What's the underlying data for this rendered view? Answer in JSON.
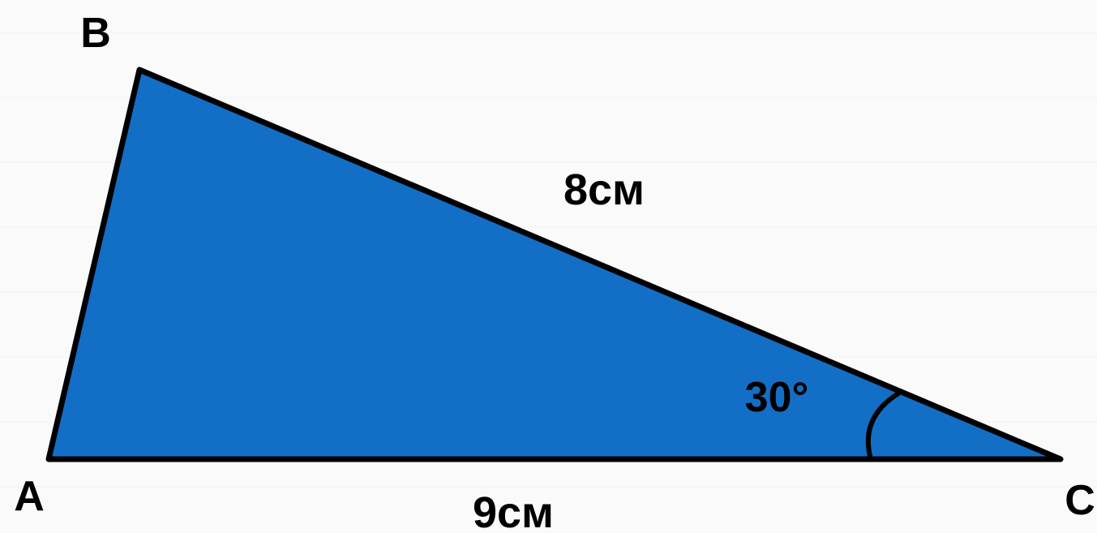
{
  "figure": {
    "vertices": {
      "a": "A",
      "b": "B",
      "c": "C"
    },
    "sides": {
      "bc": "8см",
      "ac": "9см"
    },
    "angles": {
      "c": "30°"
    }
  },
  "style": {
    "fill": "#136ec6",
    "stroke": "#000000",
    "background": "#fafafa"
  }
}
